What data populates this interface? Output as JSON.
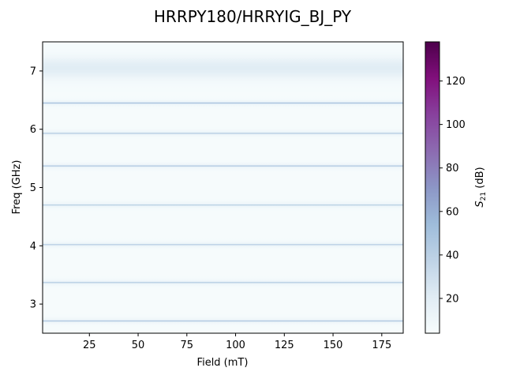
{
  "chart_data": {
    "type": "heatmap",
    "title": "HRRPY180/HRRYIG_BJ_PY",
    "xlabel": "Field (mT)",
    "ylabel": "Freq (GHz)",
    "colorbar_label": "S21 (dB)",
    "colorbar_label_main": "S",
    "colorbar_label_sub": "21",
    "colorbar_label_unit": " (dB)",
    "colormap": "BuPu",
    "xlim": [
      1,
      186
    ],
    "ylim": [
      2.5,
      7.5
    ],
    "clim": [
      4,
      138
    ],
    "xticks": [
      25,
      50,
      75,
      100,
      125,
      150,
      175
    ],
    "yticks": [
      3,
      4,
      5,
      6,
      7
    ],
    "cticks": [
      20,
      40,
      60,
      80,
      100,
      120
    ],
    "background_level": 5,
    "modes": [
      {
        "freq": 2.71,
        "level": 32
      },
      {
        "freq": 3.37,
        "level": 30
      },
      {
        "freq": 4.02,
        "level": 28
      },
      {
        "freq": 4.7,
        "level": 27
      },
      {
        "freq": 5.37,
        "level": 32
      },
      {
        "freq": 5.93,
        "level": 28
      },
      {
        "freq": 6.45,
        "level": 36
      }
    ],
    "broad_band": {
      "freq": 7.05,
      "level": 20
    }
  }
}
